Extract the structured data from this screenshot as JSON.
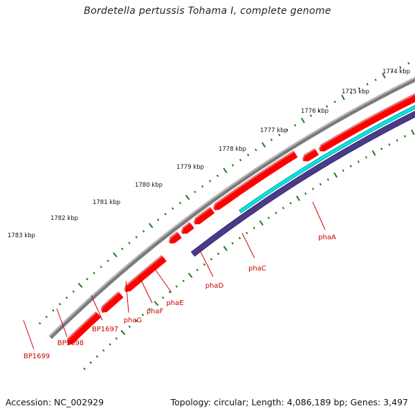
{
  "title": "Bordetella pertussis Tohama I, complete genome",
  "footer": {
    "accession": "Accession: NC_002929",
    "summary": "Topology: circular; Length: 4,086,189 bp; Genes: 3,497"
  },
  "colors": {
    "backbone": "#7a7a7a",
    "cds": "#ff0000",
    "cds_shadow": "#c40000",
    "gene_cyan": "#00e5e5",
    "operon": "#4a3a8a",
    "tick": "#1a7a1a",
    "label": "#cc0000"
  },
  "scale": {
    "unit": "kbp",
    "major_labels": [
      "1783 kbp",
      "1782 kbp",
      "1781 kbp",
      "1780 kbp",
      "1779 kbp",
      "1778 kbp",
      "1777 kbp",
      "1776 kbp",
      "1775 kbp",
      "1774 kbp"
    ]
  },
  "genes": [
    {
      "label": "BP1699"
    },
    {
      "label": "BP1698"
    },
    {
      "label": "BP1697"
    },
    {
      "label": "phaG"
    },
    {
      "label": "phaF"
    },
    {
      "label": "phaE"
    },
    {
      "label": "phaD"
    },
    {
      "label": "phaC"
    },
    {
      "label": "phaA"
    }
  ]
}
